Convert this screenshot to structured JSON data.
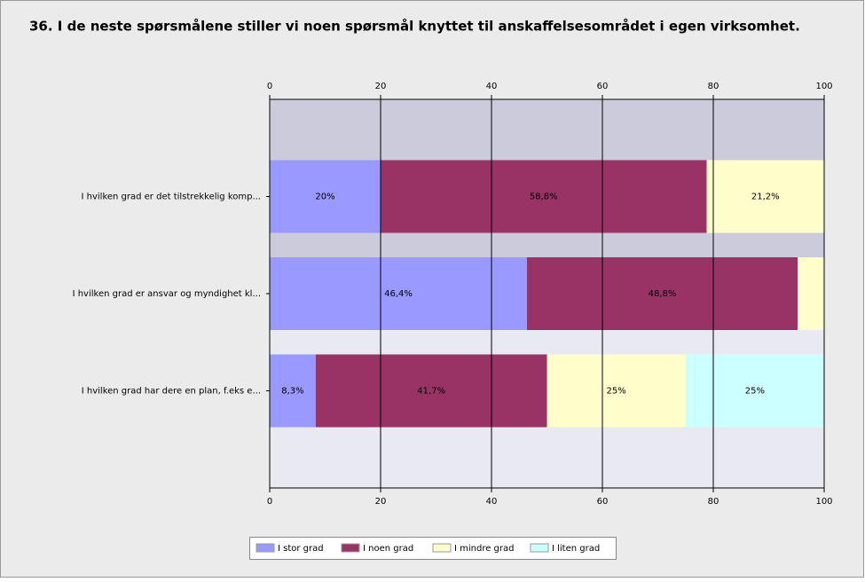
{
  "chart_data": {
    "type": "stacked-bar-horizontal",
    "title": "36. I de neste spørsmålene stiller vi noen spørsmål knyttet til anskaffelsesområdet i egen virksomhet.",
    "categories": [
      "I hvilken grad er det tilstrekkelig komp...",
      "I hvilken grad er ansvar og myndighet kl...",
      "I hvilken grad har dere en plan, f.eks e..."
    ],
    "series": [
      {
        "name": "I stor grad",
        "color": "#9999ff",
        "values": [
          20,
          46.4,
          8.3
        ],
        "value_labels": [
          "20%",
          "46,4%",
          "8,3%"
        ]
      },
      {
        "name": "I noen grad",
        "color": "#993366",
        "values": [
          58.8,
          48.8,
          41.7
        ],
        "value_labels": [
          "58,8%",
          "48,8%",
          "41,7%"
        ]
      },
      {
        "name": "I mindre grad",
        "color": "#ffffcc",
        "values": [
          21.2,
          4.8,
          25
        ],
        "value_labels": [
          "21,2%",
          null,
          "25%"
        ]
      },
      {
        "name": "I liten grad",
        "color": "#ccffff",
        "values": [
          0,
          0,
          25
        ],
        "value_labels": [
          null,
          null,
          "25%"
        ]
      }
    ],
    "xlim": [
      0,
      100
    ],
    "xticks": [
      0,
      20,
      40,
      60,
      80,
      100
    ],
    "grid": true,
    "legend": "bottom"
  }
}
